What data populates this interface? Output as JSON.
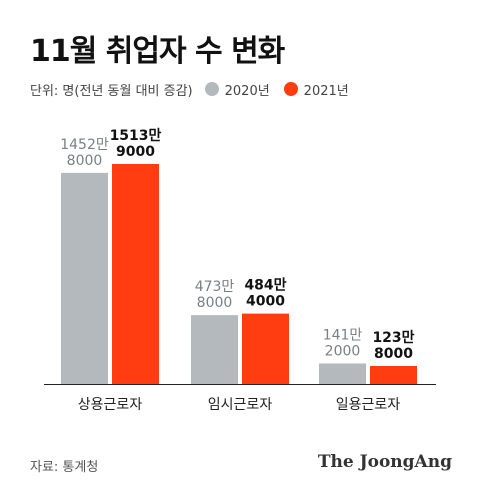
{
  "title": "11월 취업자 수 변화",
  "legend": {
    "unit": "단위: 명(전년 동월 대비 증감)",
    "items": [
      {
        "label": "2020년",
        "color": "#b3b9bd"
      },
      {
        "label": "2021년",
        "color": "#ff3d11"
      }
    ]
  },
  "source": "자료: 통계청",
  "brand": "The JoongAng",
  "chart_data": {
    "type": "bar",
    "categories": [
      "상용근로자",
      "임시근로자",
      "일용근로자"
    ],
    "series": [
      {
        "name": "2020년",
        "color": "#b3b9bd",
        "values": [
          14528000,
          4738000,
          1412000
        ],
        "labels": [
          [
            "1452만",
            "8000"
          ],
          [
            "473만",
            "8000"
          ],
          [
            "141만",
            "2000"
          ]
        ]
      },
      {
        "name": "2021년",
        "color": "#ff3d11",
        "values": [
          15139000,
          4844000,
          1238000
        ],
        "labels": [
          [
            "1513만",
            "9000"
          ],
          [
            "484만",
            "4000"
          ],
          [
            "123만",
            "8000"
          ]
        ]
      }
    ],
    "ylim": [
      0,
      15139000
    ]
  }
}
